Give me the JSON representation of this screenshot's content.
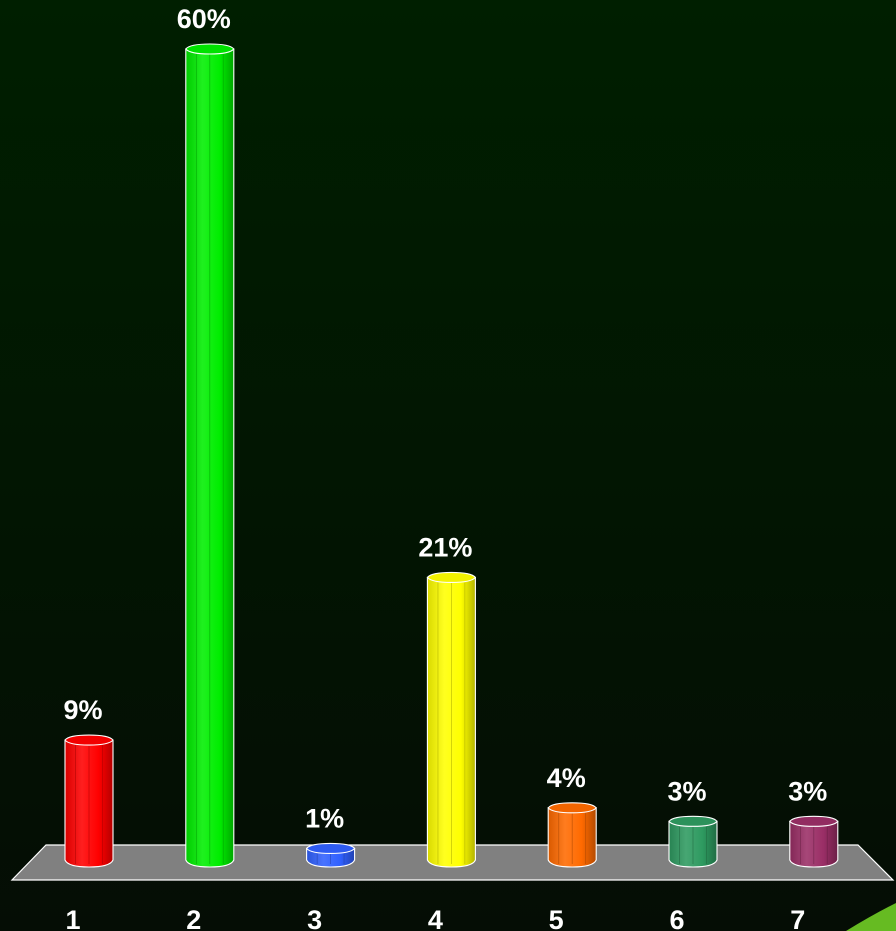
{
  "chart_data": {
    "type": "bar",
    "categories": [
      "1",
      "2",
      "3",
      "4",
      "5",
      "6",
      "7"
    ],
    "values": [
      9,
      60,
      1,
      21,
      4,
      3,
      3
    ],
    "value_labels": [
      "9%",
      "60%",
      "1%",
      "21%",
      "4%",
      "3%",
      "3%"
    ],
    "colors": [
      "#ff0000",
      "#00ee00",
      "#3060ff",
      "#ffff00",
      "#ff6a00",
      "#2e9a60",
      "#9a2e66"
    ],
    "ylim": [
      0,
      60
    ],
    "grid": false,
    "legend": "none",
    "floor_color": "#808080",
    "accent_color": "#66bb22"
  }
}
